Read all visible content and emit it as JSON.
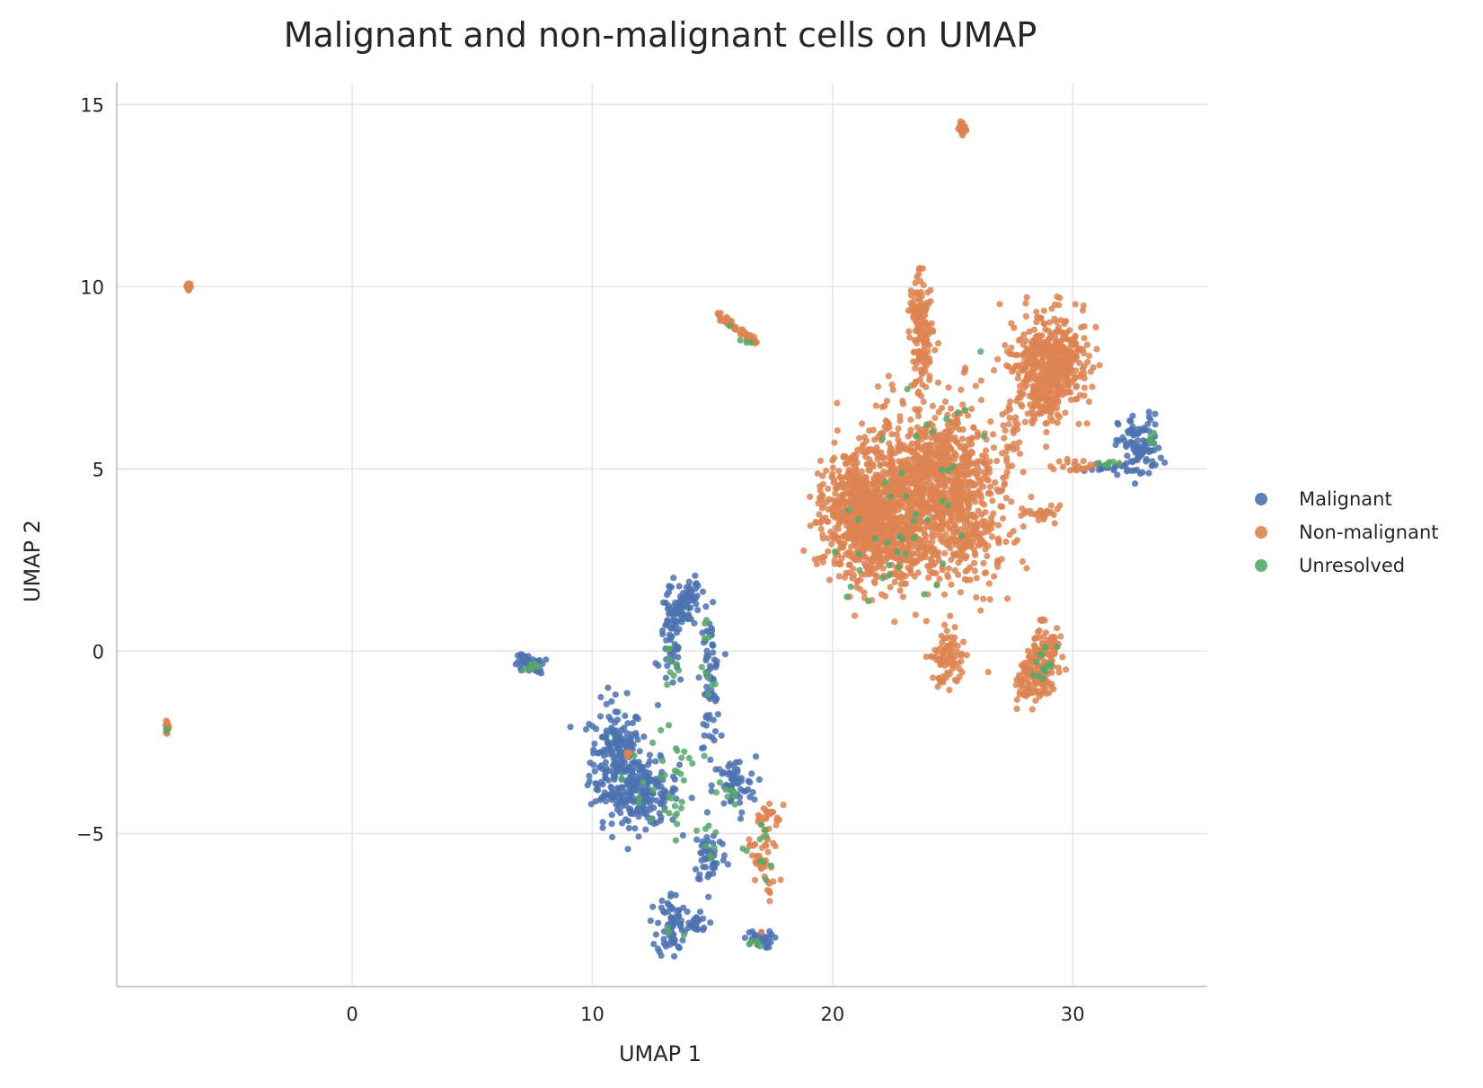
{
  "chart_data": {
    "type": "scatter",
    "title": "Malignant and non-malignant cells on UMAP",
    "xlabel": "UMAP 1",
    "ylabel": "UMAP 2",
    "xlim": [
      -9.8,
      35.6
    ],
    "ylim": [
      -9.2,
      15.6
    ],
    "xticks": [
      0,
      10,
      20,
      30
    ],
    "yticks": [
      -5,
      0,
      5,
      10,
      15
    ],
    "xtick_labels": [
      "0",
      "10",
      "20",
      "30"
    ],
    "ytick_labels": [
      "−5",
      "0",
      "5",
      "10",
      "15"
    ],
    "grid": true,
    "legend_position": "right",
    "series": [
      {
        "name": "Malignant",
        "color": "#4c72b0",
        "clusters": [
          {
            "cx": 11.0,
            "cy": -3.0,
            "sx": 0.55,
            "sy": 0.8,
            "n": 220
          },
          {
            "cx": 12.2,
            "cy": -3.9,
            "sx": 0.7,
            "sy": 0.45,
            "n": 160
          },
          {
            "cx": 13.3,
            "cy": 0.3,
            "sx": 0.25,
            "sy": 0.7,
            "n": 70
          },
          {
            "cx": 14.0,
            "cy": 1.4,
            "sx": 0.25,
            "sy": 0.35,
            "n": 40
          },
          {
            "cx": 14.9,
            "cy": -0.8,
            "sx": 0.2,
            "sy": 0.9,
            "n": 70
          },
          {
            "cx": 15.9,
            "cy": -3.7,
            "sx": 0.45,
            "sy": 0.4,
            "n": 60
          },
          {
            "cx": 14.9,
            "cy": -5.6,
            "sx": 0.35,
            "sy": 0.4,
            "n": 50
          },
          {
            "cx": 13.3,
            "cy": -7.5,
            "sx": 0.3,
            "sy": 0.45,
            "n": 70
          },
          {
            "cx": 14.3,
            "cy": -7.5,
            "sx": 0.3,
            "sy": 0.15,
            "n": 20
          },
          {
            "cx": 16.9,
            "cy": -7.9,
            "sx": 0.3,
            "sy": 0.12,
            "n": 30
          },
          {
            "cx": 7.4,
            "cy": -0.35,
            "sx": 0.3,
            "sy": 0.12,
            "n": 25
          },
          {
            "cx": 32.8,
            "cy": 5.6,
            "sx": 0.45,
            "sy": 0.45,
            "n": 90
          },
          {
            "cx": 31.6,
            "cy": 5.05,
            "sx": 0.5,
            "sy": 0.08,
            "n": 25
          }
        ]
      },
      {
        "name": "Non-malignant",
        "color": "#dd8452",
        "clusters": [
          {
            "cx": 21.2,
            "cy": 3.8,
            "sx": 0.8,
            "sy": 0.9,
            "n": 700
          },
          {
            "cx": 24.3,
            "cy": 4.8,
            "sx": 1.2,
            "sy": 1.0,
            "n": 750
          },
          {
            "cx": 22.8,
            "cy": 3.3,
            "sx": 1.0,
            "sy": 0.8,
            "n": 350
          },
          {
            "cx": 25.5,
            "cy": 3.5,
            "sx": 0.9,
            "sy": 0.9,
            "n": 250
          },
          {
            "cx": 23.7,
            "cy": 8.7,
            "sx": 0.25,
            "sy": 0.7,
            "n": 120
          },
          {
            "cx": 29.0,
            "cy": 7.9,
            "sx": 0.75,
            "sy": 0.65,
            "n": 520
          },
          {
            "cx": 28.7,
            "cy": 6.9,
            "sx": 0.35,
            "sy": 0.3,
            "n": 60
          },
          {
            "cx": 24.8,
            "cy": -0.2,
            "sx": 0.35,
            "sy": 0.4,
            "n": 80
          },
          {
            "cx": 28.4,
            "cy": -0.8,
            "sx": 0.4,
            "sy": 0.3,
            "n": 90
          },
          {
            "cx": 29.0,
            "cy": 0.0,
            "sx": 0.3,
            "sy": 0.25,
            "n": 60
          },
          {
            "cx": 28.6,
            "cy": 3.8,
            "sx": 0.35,
            "sy": 0.1,
            "n": 25
          },
          {
            "cx": 30.0,
            "cy": 5.1,
            "sx": 0.5,
            "sy": 0.08,
            "n": 20
          },
          {
            "cx": 27.5,
            "cy": 5.8,
            "sx": 0.2,
            "sy": 0.5,
            "n": 25
          },
          {
            "cx": 25.4,
            "cy": 14.35,
            "sx": 0.08,
            "sy": 0.08,
            "n": 25
          },
          {
            "cx": -6.8,
            "cy": 10.0,
            "sx": 0.05,
            "sy": 0.06,
            "n": 15
          },
          {
            "cx": -7.7,
            "cy": -2.1,
            "sx": 0.05,
            "sy": 0.08,
            "n": 15
          },
          {
            "cx": 17.2,
            "cy": -5.6,
            "sx": 0.3,
            "sy": 0.7,
            "n": 35
          },
          {
            "cx": 11.4,
            "cy": -2.8,
            "sx": 0.1,
            "sy": 0.1,
            "n": 5
          }
        ]
      },
      {
        "name": "Unresolved",
        "color": "#55a868",
        "clusters": [
          {
            "cx": 13.0,
            "cy": -3.6,
            "sx": 0.7,
            "sy": 0.6,
            "n": 35
          },
          {
            "cx": 13.4,
            "cy": -0.4,
            "sx": 0.2,
            "sy": 0.4,
            "n": 8
          },
          {
            "cx": 14.8,
            "cy": -0.5,
            "sx": 0.15,
            "sy": 0.8,
            "n": 10
          },
          {
            "cx": 15.7,
            "cy": -3.9,
            "sx": 0.3,
            "sy": 0.3,
            "n": 8
          },
          {
            "cx": 14.9,
            "cy": -5.2,
            "sx": 0.3,
            "sy": 0.4,
            "n": 8
          },
          {
            "cx": 16.9,
            "cy": -5.3,
            "sx": 0.5,
            "sy": 0.6,
            "n": 10
          },
          {
            "cx": 16.8,
            "cy": -8.0,
            "sx": 0.3,
            "sy": 0.06,
            "n": 6
          },
          {
            "cx": 13.3,
            "cy": -7.6,
            "sx": 0.2,
            "sy": 0.2,
            "n": 3
          },
          {
            "cx": 22.5,
            "cy": 3.5,
            "sx": 1.6,
            "sy": 1.3,
            "n": 30
          },
          {
            "cx": 24.5,
            "cy": 5.2,
            "sx": 1.2,
            "sy": 1.2,
            "n": 15
          },
          {
            "cx": 28.8,
            "cy": -0.4,
            "sx": 0.5,
            "sy": 0.4,
            "n": 14
          },
          {
            "cx": 31.5,
            "cy": 5.15,
            "sx": 0.3,
            "sy": 0.06,
            "n": 8
          },
          {
            "cx": 33.2,
            "cy": 6.0,
            "sx": 0.15,
            "sy": 0.15,
            "n": 4
          },
          {
            "cx": 7.5,
            "cy": -0.4,
            "sx": 0.25,
            "sy": 0.1,
            "n": 8
          },
          {
            "cx": -7.7,
            "cy": -2.15,
            "sx": 0.03,
            "sy": 0.05,
            "n": 2
          }
        ]
      }
    ],
    "lines": [
      {
        "series": "Non-malignant",
        "from": [
          15.2,
          9.25
        ],
        "to": [
          16.8,
          8.45
        ],
        "n": 60,
        "spread": 0.05
      },
      {
        "series": "Unresolved",
        "from": [
          15.2,
          9.25
        ],
        "to": [
          16.9,
          8.2
        ],
        "n": 4,
        "spread": 0.05
      },
      {
        "series": "Malignant",
        "from": [
          7.0,
          -0.1
        ],
        "to": [
          7.9,
          -0.6
        ],
        "n": 25,
        "spread": 0.04
      },
      {
        "series": "Malignant",
        "from": [
          13.4,
          1.0
        ],
        "to": [
          14.4,
          1.8
        ],
        "n": 30,
        "spread": 0.1
      },
      {
        "series": "Non-malignant",
        "from": [
          23.4,
          9.9
        ],
        "to": [
          23.9,
          7.4
        ],
        "n": 40,
        "spread": 0.12
      },
      {
        "series": "Non-malignant",
        "from": [
          27.9,
          -1.3
        ],
        "to": [
          28.9,
          0.9
        ],
        "n": 45,
        "spread": 0.15
      },
      {
        "series": "Non-malignant",
        "from": [
          16.7,
          -4.7
        ],
        "to": [
          17.6,
          -4.3
        ],
        "n": 15,
        "spread": 0.08
      },
      {
        "series": "Non-malignant",
        "from": [
          16.5,
          -5.1
        ],
        "to": [
          17.5,
          -6.6
        ],
        "n": 20,
        "spread": 0.08
      }
    ]
  }
}
